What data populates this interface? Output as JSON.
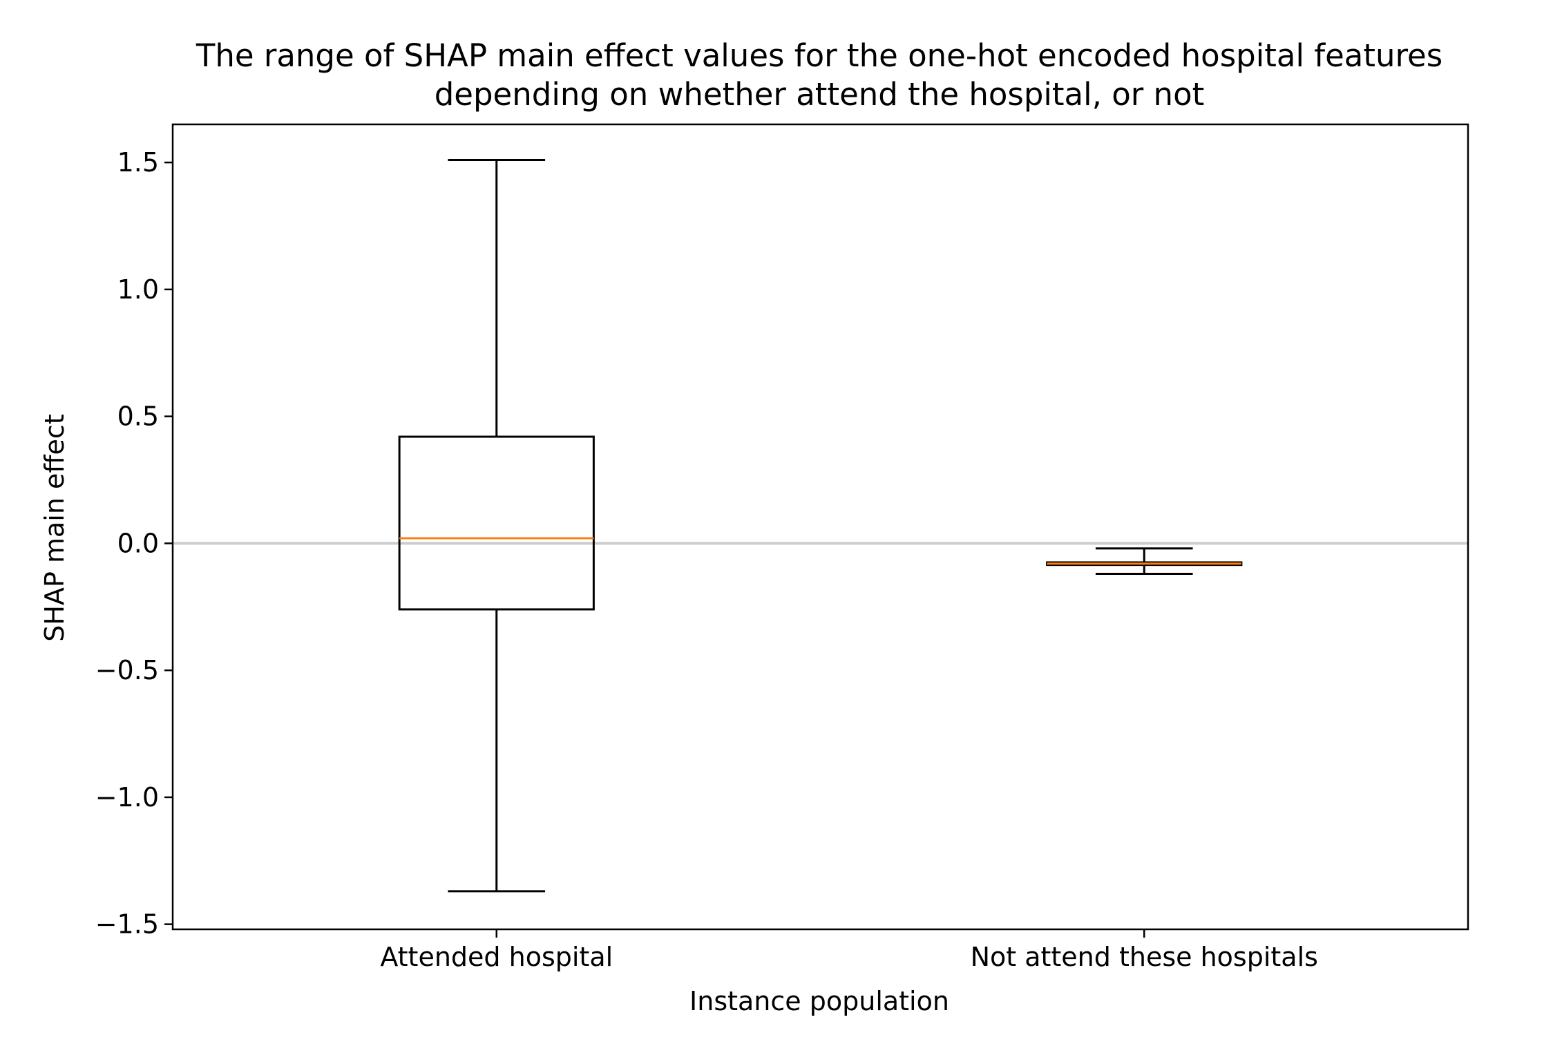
{
  "chart_data": {
    "type": "box",
    "title_lines": [
      "The range of SHAP main effect values for the one-hot encoded  hospital features",
      "depending on whether attend the hospital, or not"
    ],
    "xlabel": "Instance population",
    "ylabel": "SHAP main effect",
    "categories": [
      "Attended hospital",
      "Not attend these hospitals"
    ],
    "ylim": [
      -1.52,
      1.65
    ],
    "yticks": [
      1.5,
      1.0,
      0.5,
      0.0,
      -0.5,
      -1.0,
      -1.5
    ],
    "ytick_labels": [
      "1.5",
      "1.0",
      "0.5",
      "0.0",
      "−0.5",
      "−1.0",
      "−1.5"
    ],
    "reference_line": {
      "y": 0.0,
      "color": "#cccccc"
    },
    "boxes": [
      {
        "category": "Attended hospital",
        "whisker_low": -1.37,
        "q1": -0.26,
        "median": 0.02,
        "q3": 0.42,
        "whisker_high": 1.51
      },
      {
        "category": "Not attend these hospitals",
        "whisker_low": -0.12,
        "q1": -0.085,
        "median": -0.08,
        "q3": -0.075,
        "whisker_high": -0.02
      }
    ],
    "colors": {
      "box": "#000000",
      "median": "#ff7f0e",
      "frame": "#000000"
    },
    "grid": false
  }
}
